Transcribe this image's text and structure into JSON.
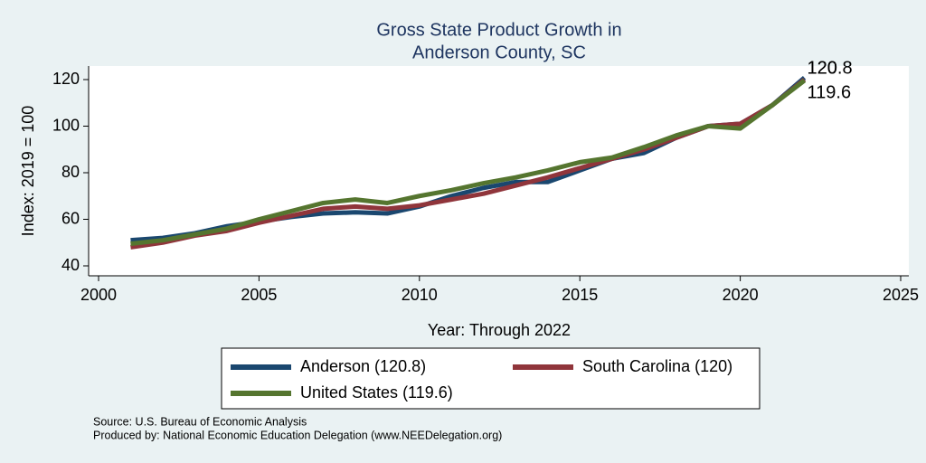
{
  "chart_data": {
    "type": "line",
    "title": [
      "Gross State Product Growth in",
      "Anderson County, SC"
    ],
    "x_label": "Year: Through 2022",
    "y_label": "Index: 2019 = 100",
    "x": [
      2001,
      2002,
      2003,
      2004,
      2005,
      2006,
      2007,
      2008,
      2009,
      2010,
      2011,
      2012,
      2013,
      2014,
      2015,
      2016,
      2017,
      2018,
      2019,
      2020,
      2021,
      2022
    ],
    "series": [
      {
        "name": "Anderson  (120.8)",
        "color": "#1a476f",
        "values": [
          51,
          52,
          54,
          57,
          59,
          61,
          62.5,
          63,
          62.5,
          65.5,
          70,
          73.5,
          76,
          76,
          81,
          86,
          88.5,
          95,
          100,
          101,
          109,
          120.8
        ]
      },
      {
        "name": "South Carolina (120)",
        "color": "#90353b",
        "values": [
          48,
          50,
          53,
          55,
          58.5,
          61.5,
          64.5,
          65.5,
          64.5,
          66,
          68.5,
          71,
          74.5,
          78,
          82,
          86,
          90,
          95,
          100,
          101,
          109,
          120
        ]
      },
      {
        "name": "United States (119.6)",
        "color": "#55752f",
        "values": [
          49.5,
          51,
          53.5,
          56,
          60,
          63.5,
          67,
          68.5,
          67,
          70,
          72.5,
          75.5,
          78,
          81,
          84.5,
          86.5,
          91,
          96,
          100,
          99,
          109,
          119.6
        ]
      }
    ],
    "xlim": [
      2000,
      2025
    ],
    "xticks": [
      2000,
      2005,
      2010,
      2015,
      2020,
      2025
    ],
    "ylim": [
      40,
      120
    ],
    "yticks": [
      40,
      60,
      80,
      100,
      120
    ],
    "grid": false,
    "notes": [
      "Source: U.S. Bureau of Economic Analysis",
      "Produced by: National Economic Education Delegation (www.NEEDelegation.org)"
    ]
  }
}
